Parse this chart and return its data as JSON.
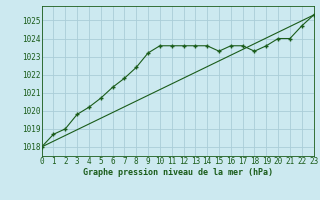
{
  "title": "Graphe pression niveau de la mer (hPa)",
  "bg_color": "#cce9f0",
  "grid_color": "#aacdd8",
  "line_color": "#1a5c1a",
  "x_min": 0,
  "x_max": 23,
  "y_min": 1017.5,
  "y_max": 1025.8,
  "y_ticks": [
    1018,
    1019,
    1020,
    1021,
    1022,
    1023,
    1024,
    1025
  ],
  "x_ticks": [
    0,
    1,
    2,
    3,
    4,
    5,
    6,
    7,
    8,
    9,
    10,
    11,
    12,
    13,
    14,
    15,
    16,
    17,
    18,
    19,
    20,
    21,
    22,
    23
  ],
  "series1_x": [
    0,
    1,
    2,
    3,
    4,
    5,
    6,
    7,
    8,
    9,
    10,
    11,
    12,
    13,
    14,
    15,
    16,
    17,
    18,
    19,
    20,
    21,
    22,
    23
  ],
  "series1_y": [
    1018.0,
    1018.7,
    1019.0,
    1019.8,
    1020.2,
    1020.7,
    1021.3,
    1021.8,
    1022.4,
    1023.2,
    1023.6,
    1023.6,
    1023.6,
    1023.6,
    1023.6,
    1023.3,
    1023.6,
    1023.6,
    1023.3,
    1023.6,
    1024.0,
    1024.0,
    1024.7,
    1025.3
  ],
  "series2_x": [
    0,
    23
  ],
  "series2_y": [
    1018.0,
    1025.3
  ]
}
